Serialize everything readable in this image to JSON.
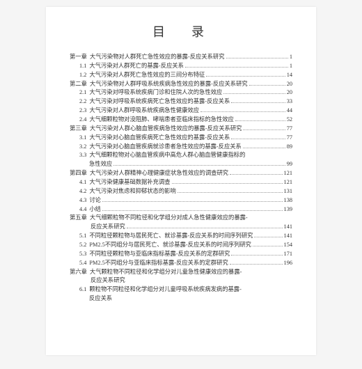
{
  "title": "目　录",
  "entries": [
    {
      "type": "chapter",
      "num": "第一章",
      "label": "大气污染物对人群死亡急性效应的暴露-反应关系研究",
      "page": "1"
    },
    {
      "type": "sub",
      "num": "1.1",
      "label": "大气污染对人群死亡的基露-反应关系",
      "page": "1"
    },
    {
      "type": "sub",
      "num": "1.2",
      "label": "大气污染对人群死亡急性效应的三间分布特征",
      "page": "14"
    },
    {
      "type": "chapter",
      "num": "第二章",
      "label": "大气污染物对人群呼吸系统疾病急性效应的暴露-反应关系研究",
      "page": "20"
    },
    {
      "type": "sub",
      "num": "2.1",
      "label": "大气污染对呼吸系统疾病门诊和住院人次的急性效应",
      "page": "20"
    },
    {
      "type": "sub",
      "num": "2.2",
      "label": "大气污染对呼吸系统疾病死亡急性效应的基露-反应关系",
      "page": "33"
    },
    {
      "type": "sub",
      "num": "2.3",
      "label": "大气污染对人群呼吸系统疾病急性健康效应",
      "page": "44"
    },
    {
      "type": "sub",
      "num": "2.4",
      "label": "大气细颗粒物对没阻肺、哮喘患者亚临床指标的急性效应",
      "page": "52"
    },
    {
      "type": "chapter",
      "num": "第三章",
      "label": "大气污染对人群心脑血管疾病急性效应的暴露-反应关系研究",
      "page": "77"
    },
    {
      "type": "sub",
      "num": "3.1",
      "label": "大气污染对心脑血管疾病死亡急性效应的基露-反应关系",
      "page": "77"
    },
    {
      "type": "sub",
      "num": "3.2",
      "label": "大气污染对心脑血管疾病就诊患者急性效应的基露-反应关系",
      "page": "89"
    },
    {
      "type": "sub2",
      "num": "3.3",
      "label": "大气细颗粒物对心脑血管疾病中高危人群心脑血管健康指标的",
      "cont": "急性效应",
      "page": "99"
    },
    {
      "type": "chapter",
      "num": "第四章",
      "label": "大气污染对人群精神心理健康症状急性效应的调查研究",
      "page": "121"
    },
    {
      "type": "sub",
      "num": "4.1",
      "label": "大气污染健康基础数据补充调查",
      "page": "121"
    },
    {
      "type": "sub",
      "num": "4.2",
      "label": "大气污染对焦虑和抑郁状态的影响",
      "page": "131"
    },
    {
      "type": "sub",
      "num": "4.3",
      "label": "讨论",
      "page": "138"
    },
    {
      "type": "sub",
      "num": "4.4",
      "label": "小结",
      "page": "139"
    },
    {
      "type": "chapter2",
      "num": "第五章",
      "label": "大气细颗粒物不同粒径和化学组分对成人急性健康效应的暴露-",
      "cont": "反应关系研究",
      "page": "141"
    },
    {
      "type": "sub",
      "num": "5.1",
      "label": "不同粒径颗粒物与居民死亡、就诊基露-反应关系的时间序列研究",
      "page": "141"
    },
    {
      "type": "sub",
      "num": "5.2",
      "label": "PM2.5不同组分与居民死亡、就诊基露-反应关系的时间序列研究",
      "page": "154"
    },
    {
      "type": "sub",
      "num": "5.3",
      "label": "不同粒径颗粒物与亚临床指标基露-反应关系的定群研究",
      "page": "171"
    },
    {
      "type": "sub",
      "num": "5.4",
      "label": "PM2.5不同组分与亚临床指标基露-反应关系的定群研究",
      "page": "196"
    },
    {
      "type": "chapter2",
      "num": "第六章",
      "label": "大气颗粒物不同粒径和化学组分对儿童急性健康效应的暴露-",
      "cont": "反应关系研究",
      "page": ""
    },
    {
      "type": "sub2",
      "num": "6.1",
      "label": "颗粒物不同粒径和化学组分对儿童呼吸系统疾病发病的基露-",
      "cont": "反应关系",
      "page": ""
    }
  ]
}
